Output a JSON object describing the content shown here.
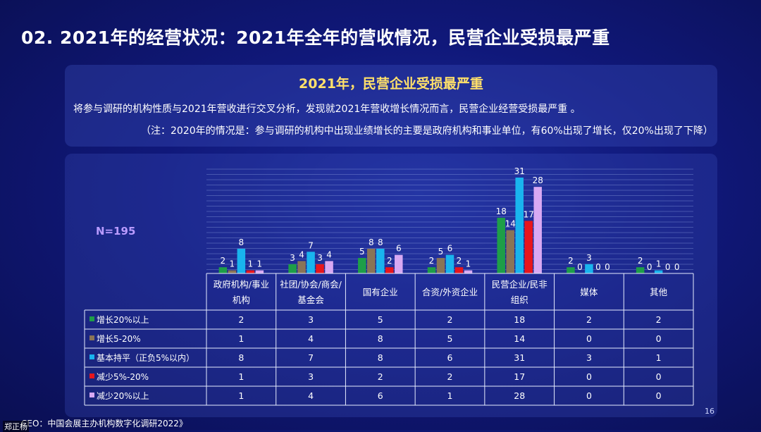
{
  "title": "02. 2021年的经营状况：2021年全年的营收情况，民营企业受损最严重",
  "info": {
    "heading": "2021年，民营企业受损最严重",
    "line1": "将参与调研的机构性质与2021年营收进行交叉分析，发现就2021年营收增长情况而言，民营企业经营受损最严重 。",
    "line2": "（注：2020年的情况是：参与调研的机构中出现业绩增长的主要是政府机构和事业单位，有60%出现了增长，仅20%出现了下降）"
  },
  "n_label": "N=195",
  "page_number": "16",
  "source": "CEO：中国会展主办机构数字化调研2022》",
  "watermark": "郑正杨",
  "colors": {
    "background": "#10187a",
    "heading": "#ffe06a",
    "n_label": "#b99bff"
  },
  "chart_data": {
    "type": "bar",
    "categories": [
      [
        "政府机构/事业",
        "机构"
      ],
      [
        "社团/协会/商会/",
        "基金会"
      ],
      [
        "国有企业"
      ],
      [
        "合资/外资企业"
      ],
      [
        "民营企业/民非",
        "组织"
      ],
      [
        "媒体"
      ],
      [
        "其他"
      ]
    ],
    "series": [
      {
        "name": "增长20%以上",
        "color": "#1e9e48",
        "values": [
          2,
          3,
          5,
          2,
          18,
          2,
          2
        ]
      },
      {
        "name": "增长5-20%",
        "color": "#8a7456",
        "values": [
          1,
          4,
          8,
          5,
          14,
          0,
          0
        ]
      },
      {
        "name": "基本持平（正负5%以内）",
        "color": "#19b4ee",
        "values": [
          8,
          7,
          8,
          6,
          31,
          3,
          1
        ]
      },
      {
        "name": "减少5%-20%",
        "color": "#e8161c",
        "values": [
          1,
          3,
          2,
          2,
          17,
          0,
          0
        ]
      },
      {
        "name": "减少20%以上",
        "color": "#d9a9f3",
        "values": [
          1,
          4,
          6,
          1,
          28,
          0,
          0
        ]
      }
    ],
    "ylim": [
      0,
      31
    ],
    "grid": "horizontal"
  }
}
